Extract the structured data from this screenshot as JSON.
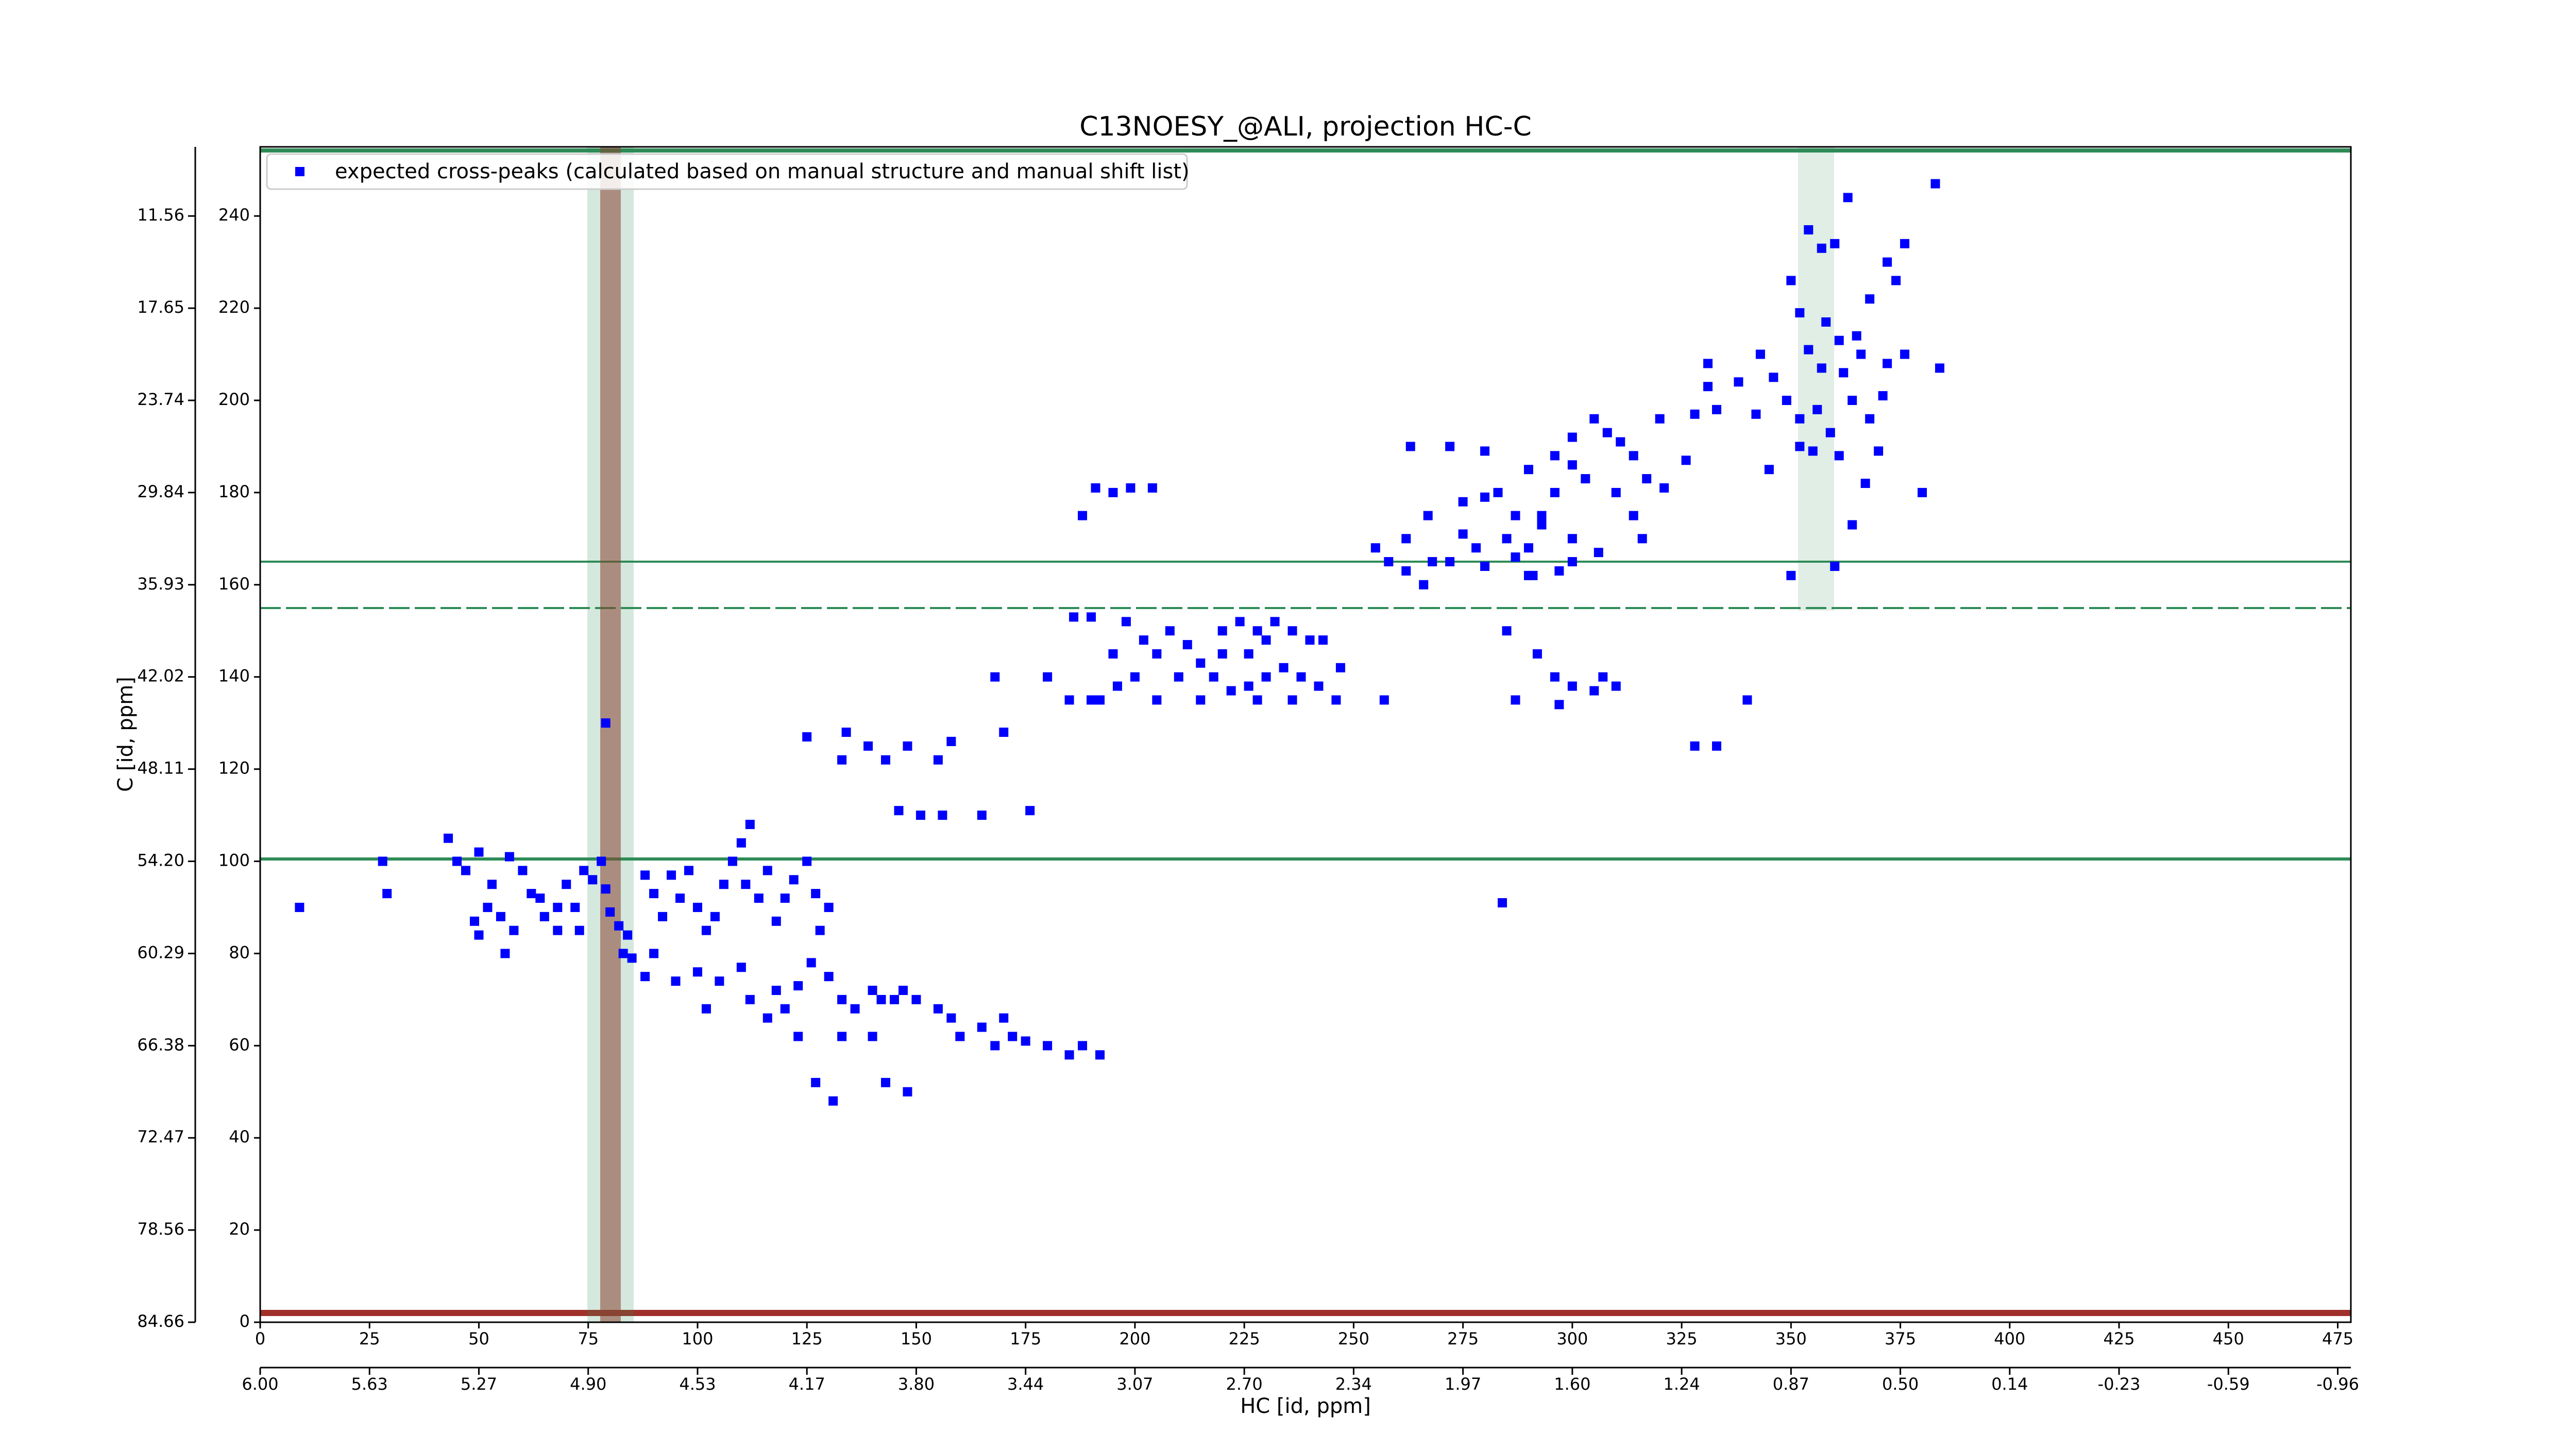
{
  "chart_data": {
    "type": "scatter",
    "title": "C13NOESY_@ALI, projection HC-C",
    "xlabel": "HC [id, ppm]",
    "ylabel": "C [id, ppm]",
    "xlim": [
      0,
      478
    ],
    "ylim": [
      0,
      255
    ],
    "xticks": [
      0,
      25,
      50,
      75,
      100,
      125,
      150,
      175,
      200,
      225,
      250,
      275,
      300,
      325,
      350,
      375,
      400,
      425,
      450,
      475
    ],
    "yticks": [
      0,
      20,
      40,
      60,
      80,
      100,
      120,
      140,
      160,
      180,
      200,
      220,
      240
    ],
    "x2ticks": [
      {
        "value": 0,
        "label": "6.00"
      },
      {
        "value": 25,
        "label": "5.63"
      },
      {
        "value": 50,
        "label": "5.27"
      },
      {
        "value": 75,
        "label": "4.90"
      },
      {
        "value": 100,
        "label": "4.53"
      },
      {
        "value": 125,
        "label": "4.17"
      },
      {
        "value": 150,
        "label": "3.80"
      },
      {
        "value": 175,
        "label": "3.44"
      },
      {
        "value": 200,
        "label": "3.07"
      },
      {
        "value": 225,
        "label": "2.70"
      },
      {
        "value": 250,
        "label": "2.34"
      },
      {
        "value": 275,
        "label": "1.97"
      },
      {
        "value": 300,
        "label": "1.60"
      },
      {
        "value": 325,
        "label": "1.24"
      },
      {
        "value": 350,
        "label": "0.87"
      },
      {
        "value": 375,
        "label": "0.50"
      },
      {
        "value": 400,
        "label": "0.14"
      },
      {
        "value": 425,
        "label": "-0.23"
      },
      {
        "value": 450,
        "label": "-0.59"
      },
      {
        "value": 475,
        "label": "-0.96"
      }
    ],
    "y2ticks": [
      {
        "value": 0,
        "label": "84.66"
      },
      {
        "value": 20,
        "label": "78.56"
      },
      {
        "value": 40,
        "label": "72.47"
      },
      {
        "value": 60,
        "label": "66.38"
      },
      {
        "value": 80,
        "label": "60.29"
      },
      {
        "value": 100,
        "label": "54.20"
      },
      {
        "value": 120,
        "label": "48.11"
      },
      {
        "value": 140,
        "label": "42.02"
      },
      {
        "value": 160,
        "label": "35.93"
      },
      {
        "value": 180,
        "label": "29.84"
      },
      {
        "value": 200,
        "label": "23.74"
      },
      {
        "value": 220,
        "label": "17.65"
      },
      {
        "value": 240,
        "label": "11.56"
      }
    ],
    "legend": "upper left",
    "series": [
      {
        "name": "expected cross-peaks (calculated based on manual structure and manual shift list)",
        "color": "#0000ff",
        "marker": "square",
        "x": [
          383,
          363,
          354,
          357,
          360,
          372,
          376,
          368,
          374,
          350,
          352,
          358,
          361,
          365,
          366,
          354,
          357,
          362,
          372,
          371,
          376,
          384,
          343,
          346,
          338,
          342,
          331,
          331,
          328,
          320,
          333,
          349,
          352,
          356,
          359,
          364,
          368,
          361,
          355,
          352,
          345,
          370,
          367,
          380,
          364,
          350,
          360,
          305,
          308,
          311,
          300,
          296,
          300,
          303,
          310,
          314,
          317,
          321,
          326,
          314,
          316,
          290,
          280,
          272,
          263,
          267,
          275,
          280,
          283,
          287,
          275,
          278,
          285,
          287,
          290,
          293,
          291,
          297,
          300,
          306,
          300,
          262,
          258,
          262,
          268,
          266,
          255,
          272,
          280,
          290,
          293,
          296,
          285,
          292,
          296,
          300,
          307,
          310,
          297,
          305,
          287,
          340,
          333,
          328,
          284,
          191,
          195,
          199,
          204,
          188,
          220,
          224,
          228,
          230,
          232,
          236,
          240,
          226,
          220,
          215,
          210,
          205,
          200,
          196,
          192,
          195,
          198,
          202,
          208,
          212,
          218,
          222,
          226,
          230,
          234,
          238,
          242,
          246,
          236,
          228,
          215,
          205,
          190,
          185,
          168,
          180,
          243,
          186,
          190,
          247,
          257,
          125,
          134,
          139,
          148,
          158,
          170,
          133,
          143,
          155,
          146,
          151,
          156,
          165,
          176,
          79,
          9,
          28,
          29,
          43,
          45,
          47,
          50,
          53,
          57,
          60,
          62,
          52,
          49,
          50,
          55,
          58,
          65,
          68,
          70,
          72,
          74,
          76,
          78,
          79,
          80,
          82,
          84,
          83,
          85,
          88,
          90,
          92,
          94,
          96,
          98,
          100,
          102,
          104,
          106,
          108,
          110,
          112,
          111,
          114,
          116,
          118,
          120,
          122,
          125,
          127,
          130,
          128,
          73,
          68,
          64,
          56,
          88,
          90,
          95,
          100,
          105,
          110,
          112,
          118,
          123,
          126,
          130,
          133,
          136,
          140,
          142,
          145,
          147,
          150,
          155,
          158,
          160,
          165,
          170,
          168,
          172,
          175,
          180,
          185,
          188,
          192,
          133,
          140,
          123,
          120,
          116,
          102,
          127,
          131,
          143,
          148
        ],
        "y": [
          247,
          244,
          237,
          233,
          234,
          230,
          234,
          222,
          226,
          226,
          219,
          217,
          213,
          214,
          210,
          211,
          207,
          206,
          208,
          201,
          210,
          207,
          210,
          205,
          204,
          197,
          208,
          203,
          197,
          196,
          198,
          200,
          196,
          198,
          193,
          200,
          196,
          188,
          189,
          190,
          185,
          189,
          182,
          180,
          173,
          162,
          164,
          196,
          193,
          191,
          192,
          188,
          186,
          183,
          180,
          188,
          183,
          181,
          187,
          175,
          170,
          185,
          189,
          190,
          190,
          175,
          178,
          179,
          180,
          175,
          171,
          168,
          170,
          166,
          168,
          173,
          162,
          163,
          165,
          167,
          170,
          170,
          165,
          163,
          165,
          160,
          168,
          165,
          164,
          162,
          175,
          180,
          150,
          145,
          140,
          138,
          140,
          138,
          134,
          137,
          135,
          135,
          125,
          125,
          91,
          181,
          180,
          181,
          181,
          175,
          150,
          152,
          150,
          148,
          152,
          150,
          148,
          145,
          145,
          143,
          140,
          145,
          140,
          138,
          135,
          145,
          152,
          148,
          150,
          147,
          140,
          137,
          138,
          140,
          142,
          140,
          138,
          135,
          135,
          135,
          135,
          135,
          135,
          135,
          140,
          140,
          148,
          153,
          153,
          142,
          135,
          127,
          128,
          125,
          125,
          126,
          128,
          122,
          122,
          122,
          111,
          110,
          110,
          110,
          111,
          130,
          90,
          100,
          93,
          105,
          100,
          98,
          102,
          95,
          101,
          98,
          93,
          90,
          87,
          84,
          88,
          85,
          88,
          90,
          95,
          90,
          98,
          96,
          100,
          94,
          89,
          86,
          84,
          80,
          79,
          97,
          93,
          88,
          97,
          92,
          98,
          90,
          85,
          88,
          95,
          100,
          104,
          108,
          95,
          92,
          98,
          87,
          92,
          96,
          100,
          93,
          90,
          85,
          85,
          85,
          92,
          80,
          75,
          80,
          74,
          76,
          74,
          77,
          70,
          72,
          73,
          78,
          75,
          70,
          68,
          72,
          70,
          70,
          72,
          70,
          68,
          66,
          62,
          64,
          66,
          60,
          62,
          61,
          60,
          58,
          60,
          58,
          62,
          62,
          62,
          68,
          66,
          68,
          52,
          48,
          52,
          50
        ]
      }
    ]
  }
}
